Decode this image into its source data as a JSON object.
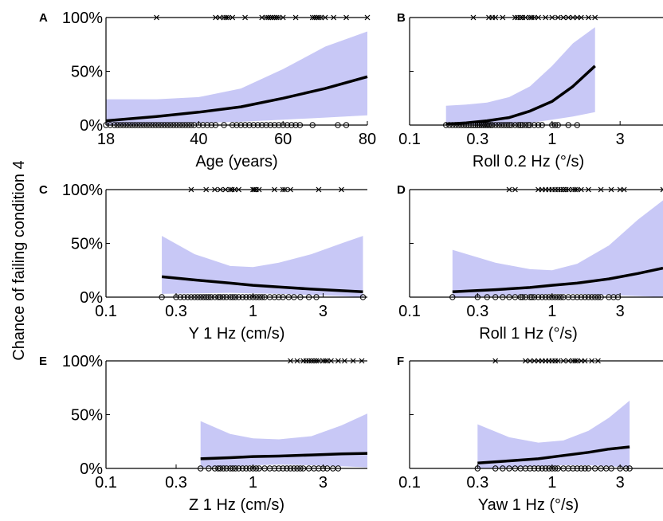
{
  "figure": {
    "ylabel": "Chance of failing condition 4"
  },
  "chart_data": [
    {
      "panel": "A",
      "type": "line",
      "xlabel": "Age (years)",
      "x_scale": "linear",
      "xlim": [
        18,
        80
      ],
      "ylim": [
        0,
        100
      ],
      "x_ticks": [
        18,
        40,
        60,
        80
      ],
      "x_tick_labels": [
        "18",
        "40",
        "60",
        "80"
      ],
      "y_ticks": [
        0,
        50,
        100
      ],
      "y_tick_labels": [
        "0%",
        "50%",
        "100%"
      ],
      "fit_curve": {
        "x": [
          18,
          30,
          40,
          50,
          60,
          70,
          80
        ],
        "y": [
          4,
          8,
          12,
          17,
          25,
          34,
          45
        ]
      },
      "ci_band": {
        "x": [
          18,
          30,
          40,
          50,
          60,
          70,
          80
        ],
        "lower": [
          0,
          1,
          2,
          3,
          5,
          7,
          9
        ],
        "upper": [
          24,
          24,
          26,
          34,
          52,
          73,
          87
        ]
      },
      "fail_points": [
        30,
        44,
        45,
        46,
        46.5,
        47,
        48,
        51,
        55,
        56,
        56.5,
        57,
        57.5,
        58,
        58.5,
        59,
        60,
        63,
        67,
        67.5,
        68,
        68.5,
        69,
        70,
        72,
        75,
        80
      ],
      "pass_points": [
        18,
        19,
        20,
        20.7,
        21.4,
        22.1,
        22.8,
        23.5,
        24.2,
        24.9,
        25.6,
        26.3,
        27,
        27.7,
        28.4,
        29.1,
        29.8,
        30.5,
        31.2,
        31.9,
        32.6,
        33.3,
        34,
        34.7,
        35.4,
        36.1,
        36.8,
        37.5,
        38.2,
        38.9,
        40,
        41,
        42,
        43,
        44,
        46,
        48,
        49,
        50,
        51,
        52,
        53,
        54,
        55,
        56,
        57,
        58,
        59,
        60,
        61,
        62,
        63,
        64,
        67,
        73,
        75
      ]
    },
    {
      "panel": "B",
      "type": "line",
      "xlabel": "Roll 0.2 Hz (°/s)",
      "x_scale": "log",
      "xlim": [
        0.1,
        6
      ],
      "ylim": [
        0,
        100
      ],
      "x_ticks": [
        0.1,
        0.3,
        1,
        3
      ],
      "x_tick_labels": [
        "0.1",
        "0.3",
        "1",
        "3"
      ],
      "y_ticks": [
        0,
        50,
        100
      ],
      "y_tick_labels": [
        "",
        "",
        ""
      ],
      "fit_curve": {
        "x": [
          0.18,
          0.25,
          0.35,
          0.5,
          0.7,
          1.0,
          1.4,
          2.0
        ],
        "y": [
          1,
          2,
          4,
          7,
          13,
          22,
          36,
          55
        ]
      },
      "ci_band": {
        "x": [
          0.18,
          0.25,
          0.35,
          0.5,
          0.7,
          1.0,
          1.4,
          2.0
        ],
        "lower": [
          0,
          0,
          0,
          1,
          2,
          5,
          8,
          12
        ],
        "upper": [
          18,
          19,
          21,
          26,
          36,
          55,
          76,
          91
        ]
      },
      "fail_points": [
        0.28,
        0.36,
        0.38,
        0.4,
        0.45,
        0.55,
        0.57,
        0.6,
        0.62,
        0.65,
        0.7,
        0.72,
        0.75,
        0.8,
        0.9,
        1.0,
        1.1,
        1.2,
        1.3,
        1.4,
        1.5,
        1.6,
        1.8,
        2.0
      ],
      "pass_points": [
        0.18,
        0.19,
        0.2,
        0.21,
        0.22,
        0.23,
        0.24,
        0.25,
        0.26,
        0.27,
        0.28,
        0.29,
        0.3,
        0.31,
        0.32,
        0.33,
        0.34,
        0.35,
        0.36,
        0.37,
        0.38,
        0.4,
        0.42,
        0.44,
        0.46,
        0.48,
        0.5,
        0.52,
        0.55,
        0.58,
        0.6,
        0.62,
        0.65,
        0.68,
        0.7,
        0.75,
        0.8,
        0.85,
        1.0,
        1.05,
        1.1,
        1.3,
        1.5
      ]
    },
    {
      "panel": "C",
      "type": "line",
      "xlabel": "Y 1 Hz (cm/s)",
      "x_scale": "log",
      "xlim": [
        0.1,
        6
      ],
      "ylim": [
        0,
        100
      ],
      "x_ticks": [
        0.1,
        0.3,
        1,
        3
      ],
      "x_tick_labels": [
        "0.1",
        "0.3",
        "1",
        "3"
      ],
      "y_ticks": [
        0,
        50,
        100
      ],
      "y_tick_labels": [
        "0%",
        "50%",
        "100%"
      ],
      "fit_curve": {
        "x": [
          0.24,
          0.4,
          0.7,
          1.0,
          1.5,
          2.5,
          4.0,
          5.6
        ],
        "y": [
          19,
          16,
          13,
          11,
          9.5,
          7.5,
          6,
          5
        ]
      },
      "ci_band": {
        "x": [
          0.24,
          0.4,
          0.7,
          1.0,
          1.5,
          2.5,
          4.0,
          5.6
        ],
        "lower": [
          3,
          3.5,
          4,
          3.5,
          3,
          2,
          1,
          0
        ],
        "upper": [
          57,
          40,
          29,
          28,
          32,
          40,
          50,
          57
        ]
      },
      "fail_points": [
        0.38,
        0.48,
        0.55,
        0.6,
        0.65,
        0.7,
        0.72,
        0.75,
        0.8,
        1.0,
        1.02,
        1.05,
        1.1,
        1.4,
        1.6,
        1.65,
        1.8,
        2.8,
        4.0
      ],
      "pass_points": [
        0.24,
        0.3,
        0.32,
        0.34,
        0.36,
        0.38,
        0.4,
        0.42,
        0.44,
        0.46,
        0.48,
        0.5,
        0.52,
        0.55,
        0.58,
        0.6,
        0.63,
        0.66,
        0.7,
        0.73,
        0.76,
        0.8,
        0.85,
        0.9,
        0.95,
        1.0,
        1.05,
        1.1,
        1.15,
        1.2,
        1.3,
        1.4,
        1.5,
        1.6,
        1.75,
        1.9,
        2.1,
        2.4,
        2.7,
        5.6
      ]
    },
    {
      "panel": "D",
      "type": "line",
      "xlabel": "Roll 1 Hz (°/s)",
      "x_scale": "log",
      "xlim": [
        0.1,
        6
      ],
      "ylim": [
        0,
        100
      ],
      "x_ticks": [
        0.1,
        0.3,
        1,
        3
      ],
      "x_tick_labels": [
        "0.1",
        "0.3",
        "1",
        "3"
      ],
      "y_ticks": [
        0,
        50,
        100
      ],
      "y_tick_labels": [
        "",
        "",
        ""
      ],
      "fit_curve": {
        "x": [
          0.2,
          0.4,
          0.7,
          1.0,
          1.5,
          2.5,
          4.0,
          6.0
        ],
        "y": [
          5,
          7,
          9,
          11,
          13,
          17,
          22,
          27
        ]
      },
      "ci_band": {
        "x": [
          0.2,
          0.4,
          0.7,
          1.0,
          1.5,
          2.5,
          4.0,
          6.0
        ],
        "lower": [
          0,
          1,
          2,
          3,
          3,
          2,
          1,
          0
        ],
        "upper": [
          44,
          32,
          26,
          25,
          31,
          48,
          72,
          90
        ]
      },
      "fail_points": [
        0.5,
        0.55,
        0.8,
        0.85,
        0.9,
        0.95,
        1.0,
        1.05,
        1.1,
        1.15,
        1.2,
        1.25,
        1.3,
        1.4,
        1.45,
        1.5,
        1.6,
        1.8,
        2.2,
        2.6,
        3.0,
        3.2,
        6.0
      ],
      "pass_points": [
        0.2,
        0.3,
        0.35,
        0.4,
        0.45,
        0.5,
        0.55,
        0.6,
        0.62,
        0.65,
        0.7,
        0.72,
        0.75,
        0.8,
        0.85,
        0.9,
        0.95,
        1.0,
        1.05,
        1.1,
        1.15,
        1.2,
        1.3,
        1.4,
        1.5,
        1.6,
        1.7,
        1.8,
        1.9,
        2.0,
        2.1,
        2.2,
        2.5,
        2.7,
        2.9
      ]
    },
    {
      "panel": "E",
      "type": "line",
      "xlabel": "Z 1 Hz (cm/s)",
      "x_scale": "log",
      "xlim": [
        0.1,
        6
      ],
      "ylim": [
        0,
        100
      ],
      "x_ticks": [
        0.1,
        0.3,
        1,
        3
      ],
      "x_tick_labels": [
        "0.1",
        "0.3",
        "1",
        "3"
      ],
      "y_ticks": [
        0,
        50,
        100
      ],
      "y_tick_labels": [
        "0%",
        "50%",
        "100%"
      ],
      "fit_curve": {
        "x": [
          0.44,
          0.7,
          1.0,
          1.5,
          2.5,
          4.0,
          6.0
        ],
        "y": [
          9,
          10,
          11,
          11.5,
          12.5,
          13.5,
          14
        ]
      },
      "ci_band": {
        "x": [
          0.44,
          0.7,
          1.0,
          1.5,
          2.5,
          4.0,
          6.0
        ],
        "lower": [
          1,
          2,
          3,
          3.5,
          3,
          2,
          1
        ],
        "upper": [
          44,
          32,
          28,
          27,
          30,
          40,
          51
        ]
      },
      "fail_points": [
        1.8,
        2.0,
        2.2,
        2.3,
        2.4,
        2.5,
        2.6,
        2.7,
        2.8,
        3.0,
        3.1,
        3.2,
        3.4,
        3.8,
        4.2,
        4.8,
        5.5
      ],
      "pass_points": [
        0.44,
        0.5,
        0.55,
        0.58,
        0.6,
        0.63,
        0.66,
        0.7,
        0.73,
        0.76,
        0.8,
        0.85,
        0.9,
        0.95,
        1.0,
        1.05,
        1.1,
        1.2,
        1.3,
        1.4,
        1.5,
        1.6,
        1.7,
        1.8,
        1.9,
        2.0,
        2.1,
        2.2,
        2.4,
        2.6,
        2.8,
        3.0,
        3.2,
        3.5,
        3.8
      ]
    },
    {
      "panel": "F",
      "type": "line",
      "xlabel": "Yaw 1 Hz (°/s)",
      "x_scale": "log",
      "xlim": [
        0.1,
        6
      ],
      "ylim": [
        0,
        100
      ],
      "x_ticks": [
        0.1,
        0.3,
        1,
        3
      ],
      "x_tick_labels": [
        "0.1",
        "0.3",
        "1",
        "3"
      ],
      "y_ticks": [
        0,
        50,
        100
      ],
      "y_tick_labels": [
        "",
        "",
        ""
      ],
      "fit_curve": {
        "x": [
          0.3,
          0.5,
          0.8,
          1.2,
          1.8,
          2.5,
          3.5
        ],
        "y": [
          5,
          7,
          9,
          12,
          15,
          18,
          20
        ]
      },
      "ci_band": {
        "x": [
          0.3,
          0.5,
          0.8,
          1.2,
          1.8,
          2.5,
          3.5
        ],
        "lower": [
          0,
          1,
          2,
          3,
          3,
          2,
          1
        ],
        "upper": [
          41,
          29,
          24,
          26,
          35,
          47,
          63
        ]
      },
      "fail_points": [
        0.4,
        0.65,
        0.7,
        0.75,
        0.8,
        0.85,
        0.9,
        0.95,
        1.0,
        1.05,
        1.1,
        1.2,
        1.3,
        1.4,
        1.45,
        1.5,
        1.6,
        1.7,
        1.9,
        2.1
      ],
      "pass_points": [
        0.3,
        0.4,
        0.45,
        0.5,
        0.55,
        0.6,
        0.65,
        0.7,
        0.75,
        0.8,
        0.85,
        0.9,
        0.95,
        1.0,
        1.05,
        1.1,
        1.2,
        1.3,
        1.4,
        1.5,
        1.6,
        1.7,
        1.8,
        2.0,
        2.2,
        2.4,
        2.6,
        3.0,
        3.3,
        3.5
      ]
    }
  ]
}
